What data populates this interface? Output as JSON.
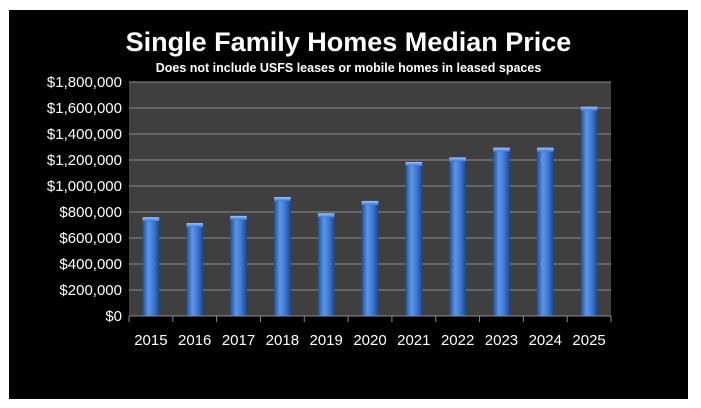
{
  "chart_data": {
    "type": "bar",
    "title": "Single Family Homes Median Price",
    "subtitle": "Does not include USFS leases or mobile homes in leased spaces",
    "xlabel": "",
    "ylabel": "",
    "categories": [
      "2015",
      "2016",
      "2017",
      "2018",
      "2019",
      "2020",
      "2021",
      "2022",
      "2023",
      "2024",
      "2025"
    ],
    "series": [
      {
        "values": [
          760000,
          715000,
          770000,
          915000,
          790000,
          885000,
          1185000,
          1220000,
          1295000,
          1295000,
          1610000
        ]
      }
    ],
    "ylim": [
      0,
      1800000
    ],
    "yticks": [
      "$0",
      "$200,000",
      "$400,000",
      "$600,000",
      "$800,000",
      "$1,000,000",
      "$1,200,000",
      "$1,400,000",
      "$1,600,000",
      "$1,800,000"
    ],
    "grid": true,
    "legend": "none",
    "colors": {
      "background": "#000000",
      "plot_area": "#3f3f3f",
      "bar": "#3b78d8",
      "gridline": "#8c8c8c",
      "text": "#ffffff"
    }
  }
}
